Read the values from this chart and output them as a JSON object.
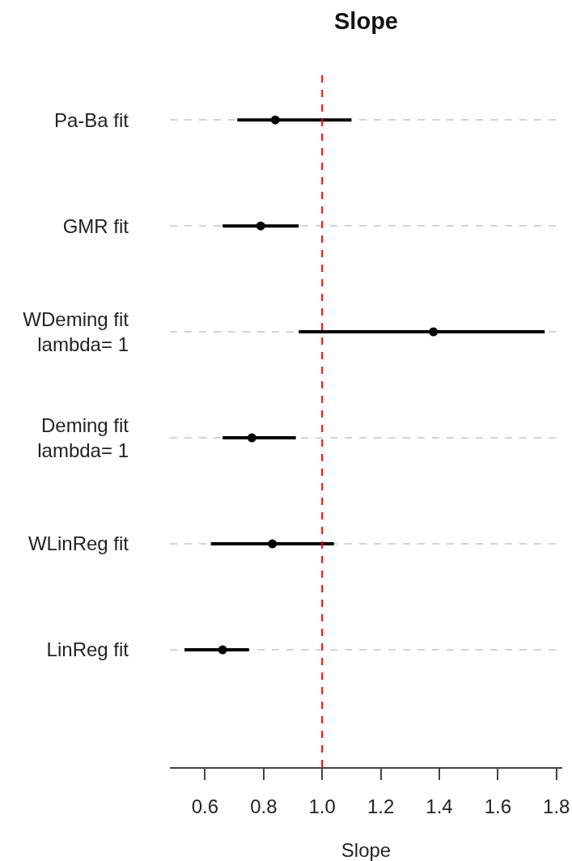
{
  "chart_data": {
    "type": "scatter",
    "title": "Slope",
    "xlabel": "Slope",
    "orientation": "horizontal",
    "categories": [
      "Pa-Ba fit",
      "GMR fit",
      "WDeming fit\nlambda= 1",
      "Deming fit\nlambda= 1",
      "WLinReg fit",
      "LinReg fit"
    ],
    "values": [
      0.84,
      0.79,
      1.38,
      0.76,
      0.83,
      0.66
    ],
    "errors": [
      [
        0.71,
        1.1
      ],
      [
        0.66,
        0.92
      ],
      [
        0.92,
        1.76
      ],
      [
        0.66,
        0.91
      ],
      [
        0.62,
        1.04
      ],
      [
        0.53,
        0.75
      ]
    ],
    "color": "#000000",
    "marker": "circle",
    "xlim": [
      0.48,
      1.82
    ],
    "xticks": [
      0.6,
      0.8,
      {
        "value": 1,
        "label": "1.0"
      },
      1.2,
      1.4,
      1.6,
      1.8
    ],
    "grid": "y",
    "ref_lines": [
      {
        "axis": "x",
        "value": 1,
        "color": "#ff0000",
        "line_style": "dashed"
      }
    ]
  }
}
